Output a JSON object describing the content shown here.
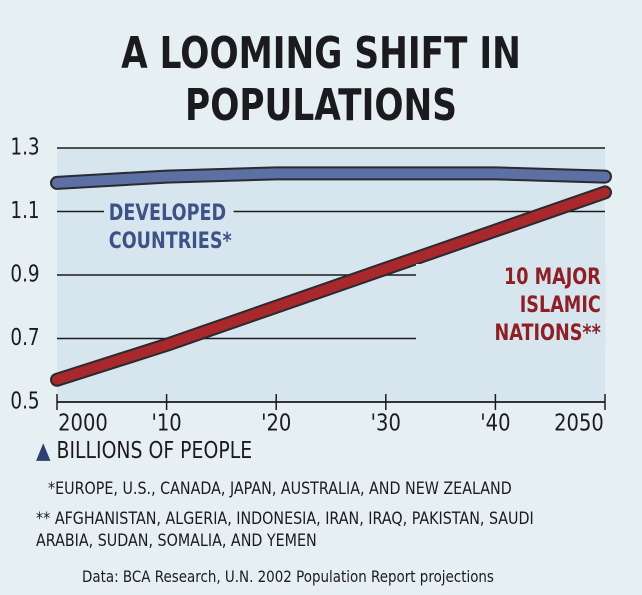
{
  "chart_data": {
    "type": "line",
    "title": "A LOOMING SHIFT IN POPULATIONS",
    "x": [
      2000,
      2010,
      2020,
      2030,
      2040,
      2050
    ],
    "xlim": [
      2000,
      2050
    ],
    "xticks": [
      {
        "value": 2000,
        "label": "2000"
      },
      {
        "value": 2010,
        "label": "'10"
      },
      {
        "value": 2020,
        "label": "'20"
      },
      {
        "value": 2030,
        "label": "'30"
      },
      {
        "value": 2040,
        "label": "'40"
      },
      {
        "value": 2050,
        "label": "2050"
      }
    ],
    "ylim": [
      0.5,
      1.3
    ],
    "yticks": [
      0.5,
      0.7,
      0.9,
      1.1,
      1.3
    ],
    "grid": true,
    "y_label": "BILLIONS OF PEOPLE",
    "series": [
      {
        "name": "DEVELOPED COUNTRIES*",
        "color": "#5c70a3",
        "values": [
          1.19,
          1.21,
          1.22,
          1.22,
          1.22,
          1.21
        ]
      },
      {
        "name": "10 MAJOR ISLAMIC NATIONS**",
        "color": "#a8282c",
        "values": [
          0.57,
          0.68,
          0.8,
          0.92,
          1.04,
          1.16
        ]
      }
    ],
    "footnotes": [
      "*EUROPE, U.S., CANADA, JAPAN, AUSTRALIA, AND NEW ZEALAND",
      "** AFGHANISTAN, ALGERIA, INDONESIA, IRAN, IRAQ, PAKISTAN, SAUDI ARABIA, SUDAN, SOMALIA, AND YEMEN"
    ],
    "source": "Data: BCA Research, U.N. 2002 Population Report projections"
  }
}
